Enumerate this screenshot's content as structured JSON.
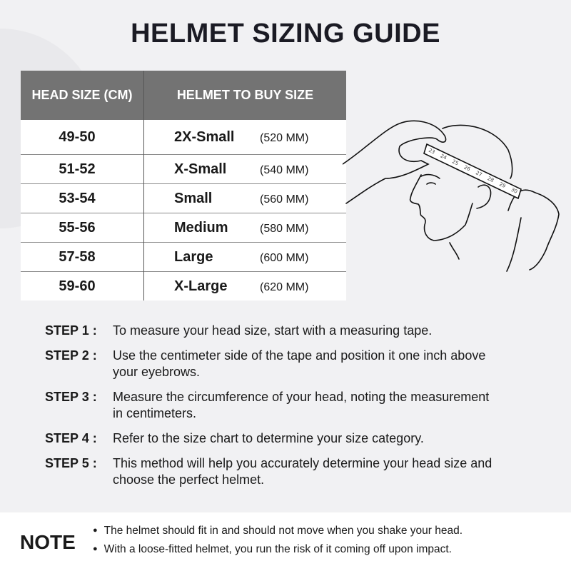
{
  "title": "HELMET SIZING GUIDE",
  "table": {
    "headers": [
      "HEAD SIZE (CM)",
      "HELMET TO BUY SIZE"
    ],
    "rows": [
      {
        "head": "49-50",
        "size": "2X-Small",
        "mm": "(520 MM)"
      },
      {
        "head": "51-52",
        "size": "X-Small",
        "mm": "(540 MM)"
      },
      {
        "head": "53-54",
        "size": "Small",
        "mm": "(560 MM)"
      },
      {
        "head": "55-56",
        "size": "Medium",
        "mm": "(580 MM)"
      },
      {
        "head": "57-58",
        "size": "Large",
        "mm": "(600 MM)"
      },
      {
        "head": "59-60",
        "size": "X-Large",
        "mm": "(620 MM)"
      }
    ]
  },
  "illustration": {
    "tape_numbers": [
      "23",
      "24",
      "25",
      "26",
      "27",
      "28",
      "29",
      "30"
    ]
  },
  "steps": [
    {
      "label": "STEP 1 :",
      "text": "To measure your head size, start with a measuring tape."
    },
    {
      "label": "STEP 2 :",
      "text": "Use the centimeter side of the tape and position it one inch above your eyebrows."
    },
    {
      "label": "STEP 3 :",
      "text": "Measure the circumference of your head, noting the measurement in centimeters."
    },
    {
      "label": "STEP 4 :",
      "text": "Refer to the size chart to determine your size category."
    },
    {
      "label": "STEP 5 :",
      "text": "This method will help you accurately determine your head size and choose the perfect helmet."
    }
  ],
  "note": {
    "title": "NOTE",
    "items": [
      "The helmet should fit in and should not move when you shake your head.",
      "With a loose-fitted helmet, you run the risk of it coming off upon impact."
    ]
  }
}
